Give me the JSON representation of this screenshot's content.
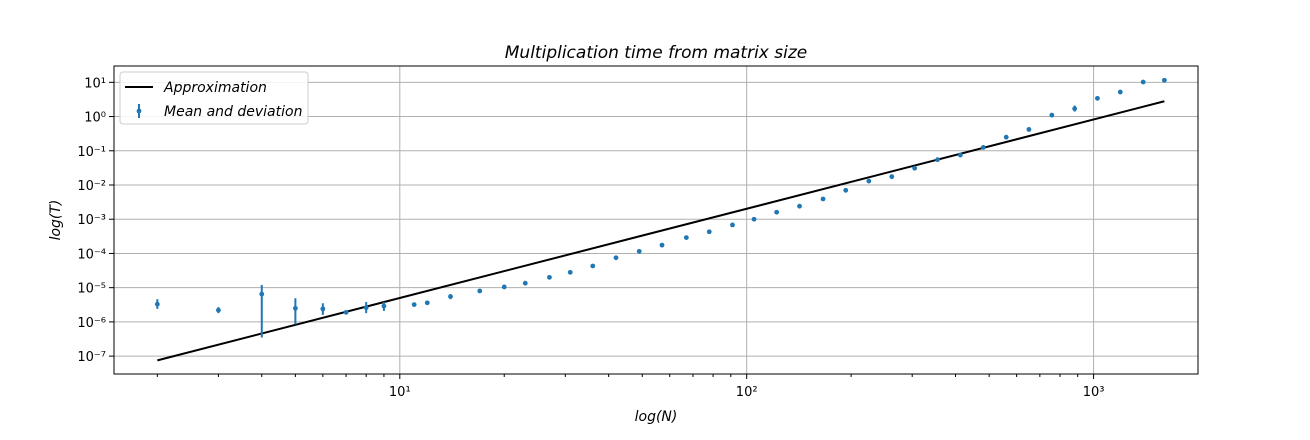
{
  "chart_data": {
    "type": "scatter",
    "title": "Multiplication time from matrix size",
    "xlabel": "log(N)",
    "ylabel": "log(T)",
    "xscale": "log",
    "yscale": "log",
    "xlim": [
      1.5,
      2000
    ],
    "ylim": [
      3e-08,
      30
    ],
    "grid": true,
    "legend_position": "upper-left",
    "x_major_ticks": [
      10,
      100,
      1000
    ],
    "y_major_ticks": [
      1e-07,
      1e-06,
      1e-05,
      0.0001,
      0.001,
      0.01,
      0.1,
      1,
      10
    ],
    "colors": {
      "approximation": "#000000",
      "measured": "#1f77b4"
    },
    "series": [
      {
        "name": "Approximation",
        "kind": "line",
        "x": [
          2,
          1600
        ],
        "y": [
          7.5e-08,
          2.8
        ]
      },
      {
        "name": "Mean and deviation",
        "kind": "errorbar",
        "x": [
          2,
          3,
          4,
          5,
          6,
          7,
          8,
          9,
          11,
          12,
          14,
          17,
          20,
          23,
          27,
          31,
          36,
          42,
          49,
          57,
          67,
          78,
          91,
          105,
          122,
          142,
          166,
          193,
          225,
          262,
          305,
          355,
          413,
          481,
          560,
          651,
          758,
          882,
          1026,
          1194,
          1390,
          1600
        ],
        "y": [
          3.3e-06,
          2.2e-06,
          6.5e-06,
          2.5e-06,
          2.4e-06,
          1.9e-06,
          2.6e-06,
          2.9e-06,
          3.2e-06,
          3.6e-06,
          5.5e-06,
          8e-06,
          1.05e-05,
          1.35e-05,
          2e-05,
          2.8e-05,
          4.3e-05,
          7.5e-05,
          0.000115,
          0.000175,
          0.00029,
          0.00043,
          0.00068,
          0.001,
          0.0016,
          0.0024,
          0.0039,
          0.007,
          0.013,
          0.0175,
          0.031,
          0.055,
          0.075,
          0.125,
          0.25,
          0.42,
          1.1,
          1.7,
          3.4,
          5.2,
          10.2,
          11.5
        ],
        "err_low": [
          2.4e-06,
          1.8e-06,
          3.5e-07,
          8.5e-07,
          1.6e-06,
          1.8e-06,
          1.8e-06,
          2.1e-06,
          3e-06,
          3.3e-06,
          4.6e-06,
          7.5e-06,
          9.8e-06,
          1.28e-05,
          1.9e-05,
          2.7e-05,
          4.1e-05,
          7.2e-05,
          0.00011,
          0.00017,
          0.00028,
          0.00042,
          0.00066,
          0.00097,
          0.00155,
          0.0023,
          0.0038,
          0.0068,
          0.0127,
          0.017,
          0.03,
          0.053,
          0.073,
          0.12,
          0.24,
          0.405,
          1.0,
          1.4,
          3.2,
          5.0,
          9.8,
          11.0
        ],
        "err_high": [
          4.6e-06,
          2.7e-06,
          1.2e-05,
          4.9e-06,
          3.5e-06,
          2e-06,
          3.8e-06,
          3.8e-06,
          3.4e-06,
          3.9e-06,
          6.5e-06,
          8.5e-06,
          1.12e-05,
          1.42e-05,
          2.1e-05,
          2.9e-05,
          4.5e-05,
          7.8e-05,
          0.00012,
          0.00018,
          0.0003,
          0.00044,
          0.0007,
          0.00103,
          0.00165,
          0.0025,
          0.004,
          0.0072,
          0.0133,
          0.018,
          0.032,
          0.057,
          0.077,
          0.13,
          0.26,
          0.435,
          1.2,
          2.1,
          3.6,
          5.4,
          10.6,
          12.0
        ]
      }
    ]
  }
}
